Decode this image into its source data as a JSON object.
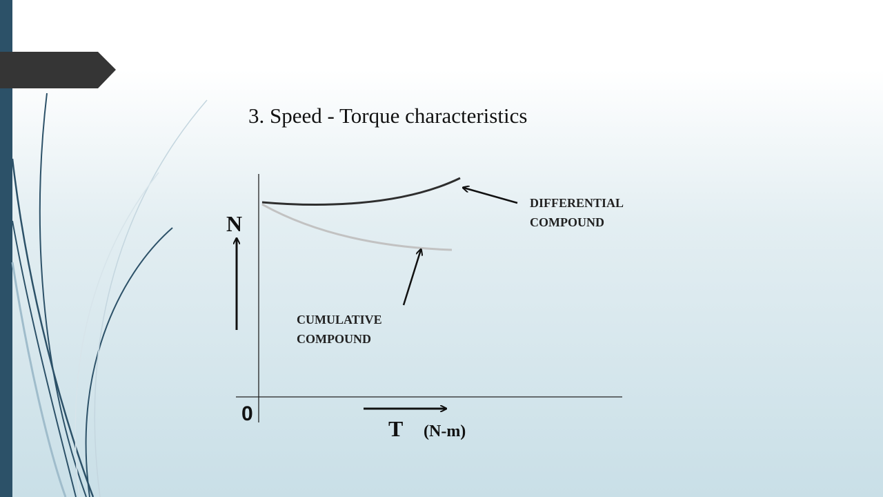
{
  "slide": {
    "title": "3. Speed - Torque characteristics"
  },
  "diagram": {
    "y_axis_label": "N",
    "x_axis_label": "T",
    "x_axis_unit": "(N-m)",
    "origin_label": "0",
    "curves": [
      {
        "id": "differential",
        "label_line1": "DIFFERENTIAL",
        "label_line2": "COMPOUND",
        "color": "#2e2e2e"
      },
      {
        "id": "cumulative",
        "label_line1": "CUMULATIVE",
        "label_line2": "COMPOUND",
        "color": "#c2c2c2"
      }
    ]
  },
  "theme": {
    "accent": "#2c5168",
    "tag": "#353535"
  }
}
